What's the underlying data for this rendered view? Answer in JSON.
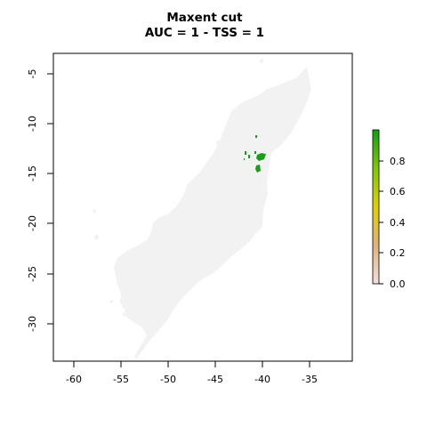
{
  "title": {
    "line1": "Maxent cut",
    "line2": "AUC = 1 - TSS = 1"
  },
  "map": {
    "x_ticks": [
      "-60",
      "-55",
      "-50",
      "-45",
      "-40",
      "-35"
    ],
    "y_ticks": [
      "-5",
      "-10",
      "-15",
      "-20",
      "-25",
      "-30"
    ],
    "land_color": "#f2f2f2",
    "presence_color": "#1a9e1a"
  },
  "legend": {
    "ticks": [
      "0.8",
      "0.6",
      "0.4",
      "0.2",
      "0.0"
    ],
    "palette": [
      "#f5dede",
      "#e0b27a",
      "#e0d000",
      "#80c800",
      "#11a011"
    ]
  },
  "chart_data": {
    "type": "raster-map",
    "xlabel": "",
    "ylabel": "",
    "xlim": [
      -62.2,
      -30.2
    ],
    "ylim": [
      -34,
      -2.8
    ],
    "x_tick_values": [
      -60,
      -55,
      -50,
      -45,
      -40,
      -35
    ],
    "y_tick_values": [
      -5,
      -10,
      -15,
      -20,
      -25,
      -30
    ],
    "legend_range": [
      0,
      1
    ],
    "legend_tick_values": [
      0.8,
      0.6,
      0.4,
      0.2,
      0.0
    ]
  }
}
